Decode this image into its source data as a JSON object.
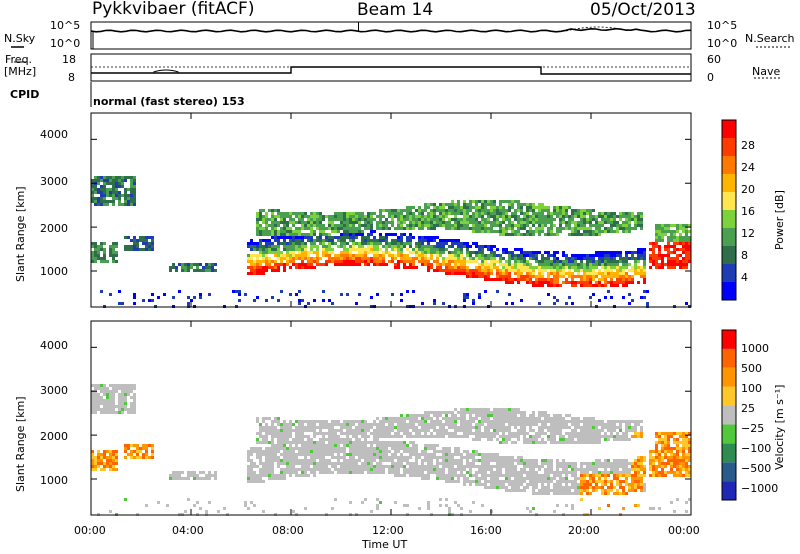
{
  "header": {
    "station": "Pykkvibaer (fitACF)",
    "beam": "Beam 14",
    "date": "05/Oct/2013"
  },
  "top_panels": {
    "nsky_label": "N.Sky",
    "nsearch_label": "N.Search",
    "nsky_ticks": [
      "10^5",
      "10^0"
    ],
    "nsearch_ticks": [
      "10^5",
      "10^0"
    ],
    "freq_label": "Freq.",
    "freq_unit": "[MHz]",
    "freq_ticks": [
      "18",
      "8"
    ],
    "nave_label": "Nave",
    "nave_ticks": [
      "60",
      "0"
    ],
    "cpid_label": "CPID",
    "cpid_value": "normal (fast stereo) 153"
  },
  "chart_data": [
    {
      "type": "heatmap",
      "name": "power",
      "ylabel": "Slant Range [km]",
      "yticks": [
        "4000",
        "3000",
        "2000",
        "1000"
      ],
      "ylim": [
        180,
        4600
      ],
      "xlim": [
        0,
        24
      ],
      "colorbar_label": "Power [dB]",
      "colorbar_ticks": [
        "28",
        "24",
        "20",
        "16",
        "12",
        "8",
        "4"
      ],
      "colors": [
        "#0000ff",
        "#1e3cb4",
        "#2e6e4a",
        "#4aa050",
        "#7dd23c",
        "#ffe650",
        "#ffb400",
        "#ff7800",
        "#ff3c00",
        "#ff0000"
      ]
    },
    {
      "type": "heatmap",
      "name": "velocity",
      "ylabel": "Slant Range [km]",
      "yticks": [
        "4000",
        "3000",
        "2000",
        "1000"
      ],
      "ylim": [
        180,
        4600
      ],
      "xlim": [
        0,
        24
      ],
      "colorbar_label": "Velocity [m s⁻¹]",
      "colorbar_ticks": [
        "1000",
        "500",
        "100",
        "25",
        "−25",
        "−100",
        "−500",
        "−1000"
      ],
      "colors": [
        "#1e28b4",
        "#285a8c",
        "#2e8c50",
        "#50c83c",
        "#bebebe",
        "#ffc828",
        "#ff9600",
        "#ff6400",
        "#ff0000"
      ]
    }
  ],
  "xaxis": {
    "ticks": [
      "00:00",
      "04:00",
      "08:00",
      "12:00",
      "16:00",
      "20:00",
      "00:00"
    ],
    "label": "Time UT"
  }
}
